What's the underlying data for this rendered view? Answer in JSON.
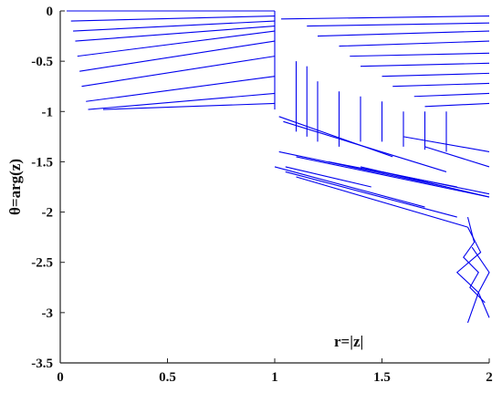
{
  "chart_data": {
    "type": "line",
    "title": "",
    "xlabel": "",
    "ylabel": "θ=arg(z)",
    "annotation": "r=|z|",
    "xlim": [
      0,
      2
    ],
    "ylim": [
      -3.5,
      0
    ],
    "x_ticks": [
      0,
      0.5,
      1,
      1.5,
      2
    ],
    "x_tick_labels": [
      "0",
      "0.5",
      "1",
      "1.5",
      "2"
    ],
    "y_ticks": [
      0,
      -0.5,
      -1,
      -1.5,
      -2,
      -2.5,
      -3,
      -3.5
    ],
    "y_tick_labels": [
      "0",
      "-0.5",
      "-1",
      "-1.5",
      "-2",
      "-2.5",
      "-3",
      "-3.5"
    ],
    "grid": false,
    "legend": "none",
    "line_color": "#0000ee",
    "series": [
      {
        "x": [
          0.03,
          1.0
        ],
        "y": [
          0,
          0
        ]
      },
      {
        "x": [
          0.05,
          1.0
        ],
        "y": [
          -0.1,
          -0.05
        ]
      },
      {
        "x": [
          0.06,
          1.0
        ],
        "y": [
          -0.2,
          -0.1
        ]
      },
      {
        "x": [
          0.07,
          1.0
        ],
        "y": [
          -0.3,
          -0.15
        ]
      },
      {
        "x": [
          0.08,
          1.0
        ],
        "y": [
          -0.45,
          -0.2
        ]
      },
      {
        "x": [
          0.09,
          1.0
        ],
        "y": [
          -0.6,
          -0.3
        ]
      },
      {
        "x": [
          0.1,
          1.0
        ],
        "y": [
          -0.75,
          -0.45
        ]
      },
      {
        "x": [
          0.12,
          1.0
        ],
        "y": [
          -0.9,
          -0.65
        ]
      },
      {
        "x": [
          0.13,
          1.0
        ],
        "y": [
          -0.98,
          -0.82
        ]
      },
      {
        "x": [
          0.2,
          1.0
        ],
        "y": [
          -0.98,
          -0.92
        ]
      },
      {
        "x": [
          1.0,
          1.0
        ],
        "y": [
          0,
          -0.98
        ]
      },
      {
        "x": [
          1.02,
          1.55
        ],
        "y": [
          -1.05,
          -1.45
        ]
      },
      {
        "x": [
          1.04,
          1.8
        ],
        "y": [
          -1.1,
          -1.6
        ]
      },
      {
        "x": [
          1.02,
          1.8
        ],
        "y": [
          -1.4,
          -1.75
        ]
      },
      {
        "x": [
          1.1,
          2.0
        ],
        "y": [
          -1.45,
          -1.85
        ]
      },
      {
        "x": [
          1.05,
          1.45
        ],
        "y": [
          -1.55,
          -1.75
        ]
      },
      {
        "x": [
          1.25,
          1.85
        ],
        "y": [
          -1.5,
          -1.75
        ]
      },
      {
        "x": [
          1.4,
          2.0
        ],
        "y": [
          -1.55,
          -1.85
        ]
      },
      {
        "x": [
          1.5,
          2.0
        ],
        "y": [
          -1.6,
          -1.82
        ]
      },
      {
        "x": [
          1.6,
          2.0
        ],
        "y": [
          -1.25,
          -1.4
        ]
      },
      {
        "x": [
          1.7,
          2.0
        ],
        "y": [
          -1.35,
          -1.55
        ]
      },
      {
        "x": [
          1.0,
          1.7
        ],
        "y": [
          -1.55,
          -1.95
        ]
      },
      {
        "x": [
          1.05,
          1.85
        ],
        "y": [
          -1.6,
          -2.05
        ]
      },
      {
        "x": [
          1.1,
          1.9
        ],
        "y": [
          -1.65,
          -2.15
        ]
      },
      {
        "x": [
          1.9,
          1.93,
          1.88,
          1.95,
          1.91,
          1.98
        ],
        "y": [
          -2.05,
          -2.3,
          -2.45,
          -2.6,
          -2.75,
          -2.9
        ]
      },
      {
        "x": [
          1.9,
          1.96,
          1.85,
          1.95,
          1.9
        ],
        "y": [
          -2.15,
          -2.4,
          -2.6,
          -2.8,
          -3.1
        ]
      },
      {
        "x": [
          1.92,
          2.0,
          1.95,
          2.0
        ],
        "y": [
          -2.35,
          -2.6,
          -2.8,
          -3.05
        ]
      },
      {
        "x": [
          1.03,
          2.0
        ],
        "y": [
          -0.08,
          -0.05
        ]
      },
      {
        "x": [
          1.15,
          2.0
        ],
        "y": [
          -0.15,
          -0.12
        ]
      },
      {
        "x": [
          1.2,
          2.0
        ],
        "y": [
          -0.25,
          -0.2
        ]
      },
      {
        "x": [
          1.3,
          2.0
        ],
        "y": [
          -0.35,
          -0.3
        ]
      },
      {
        "x": [
          1.35,
          2.0
        ],
        "y": [
          -0.45,
          -0.42
        ]
      },
      {
        "x": [
          1.4,
          2.0
        ],
        "y": [
          -0.55,
          -0.52
        ]
      },
      {
        "x": [
          1.5,
          2.0
        ],
        "y": [
          -0.65,
          -0.62
        ]
      },
      {
        "x": [
          1.55,
          2.0
        ],
        "y": [
          -0.75,
          -0.72
        ]
      },
      {
        "x": [
          1.65,
          2.0
        ],
        "y": [
          -0.85,
          -0.82
        ]
      },
      {
        "x": [
          1.7,
          2.0
        ],
        "y": [
          -0.95,
          -0.92
        ]
      },
      {
        "x": [
          1.1,
          1.1
        ],
        "y": [
          -0.5,
          -1.2
        ]
      },
      {
        "x": [
          1.15,
          1.15
        ],
        "y": [
          -0.55,
          -1.25
        ]
      },
      {
        "x": [
          1.2,
          1.2
        ],
        "y": [
          -0.7,
          -1.3
        ]
      },
      {
        "x": [
          1.3,
          1.3
        ],
        "y": [
          -0.8,
          -1.35
        ]
      },
      {
        "x": [
          1.4,
          1.4
        ],
        "y": [
          -0.85,
          -1.3
        ]
      },
      {
        "x": [
          1.5,
          1.5
        ],
        "y": [
          -0.9,
          -1.3
        ]
      },
      {
        "x": [
          1.6,
          1.6
        ],
        "y": [
          -1.0,
          -1.35
        ]
      },
      {
        "x": [
          1.7,
          1.7
        ],
        "y": [
          -1.0,
          -1.38
        ]
      },
      {
        "x": [
          1.8,
          1.8
        ],
        "y": [
          -1.0,
          -1.4
        ]
      }
    ]
  }
}
